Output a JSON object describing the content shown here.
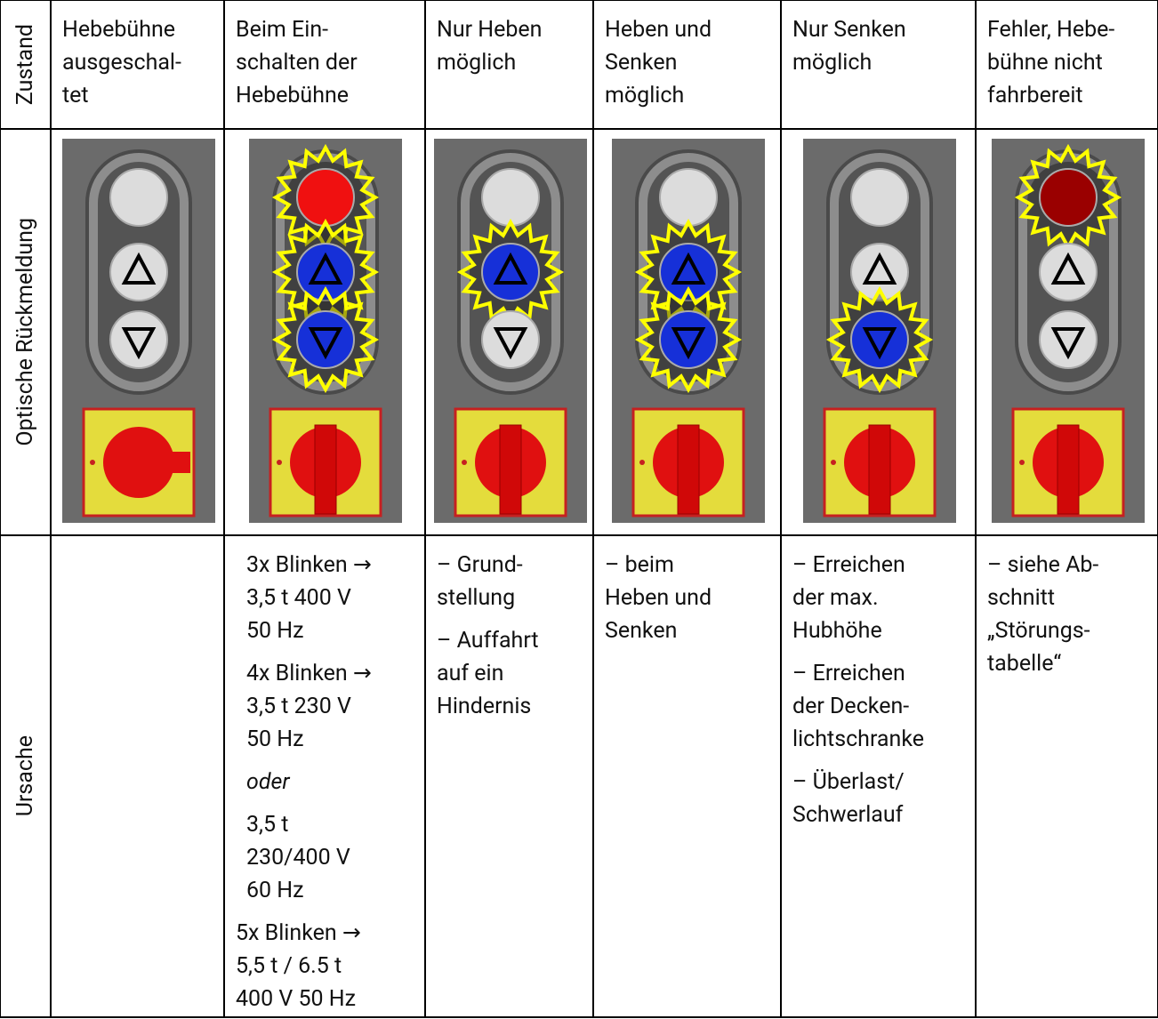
{
  "row_labels": [
    "Zustand",
    "Optische Rückmeldung",
    "Ursache"
  ],
  "zustand": [
    [
      "Hebebühne",
      "ausgeschal-",
      "tet"
    ],
    [
      "Beim Ein-",
      "schalten der",
      "Hebebühne"
    ],
    [
      "Nur Heben",
      "möglich"
    ],
    [
      "Heben und",
      "Senken",
      "möglich"
    ],
    [
      "Nur Senken",
      "möglich"
    ],
    [
      "Fehler, Hebe-",
      "bühne nicht",
      "fahrbereit"
    ]
  ],
  "ursache": [
    [],
    [
      [
        "3x Blinken →",
        "3,5 t 400 V",
        "50 Hz"
      ],
      [
        "4x Blinken →",
        "3,5 t 230 V",
        "50 Hz"
      ],
      [
        "oder"
      ],
      [
        "3,5 t",
        "230/400 V",
        "60 Hz"
      ],
      [
        "5x Blinken →",
        "5,5 t / 6.5 t",
        "400 V 50 Hz"
      ]
    ],
    [
      [
        "– Grund-",
        "stellung"
      ],
      [
        "– Auffahrt",
        "auf ein",
        "Hindernis"
      ]
    ],
    [
      [
        "– beim",
        "Heben und",
        "Senken"
      ]
    ],
    [
      [
        "– Erreichen",
        "der max.",
        "Hubhöhe"
      ],
      [
        "– Erreichen",
        "der Decken-",
        "lichtschranke"
      ],
      [
        "– Überlast/",
        "Schwerlauf"
      ]
    ],
    [
      [
        "– siehe Ab-",
        "schnitt",
        "„Störungs-",
        "tabelle“"
      ]
    ]
  ]
}
